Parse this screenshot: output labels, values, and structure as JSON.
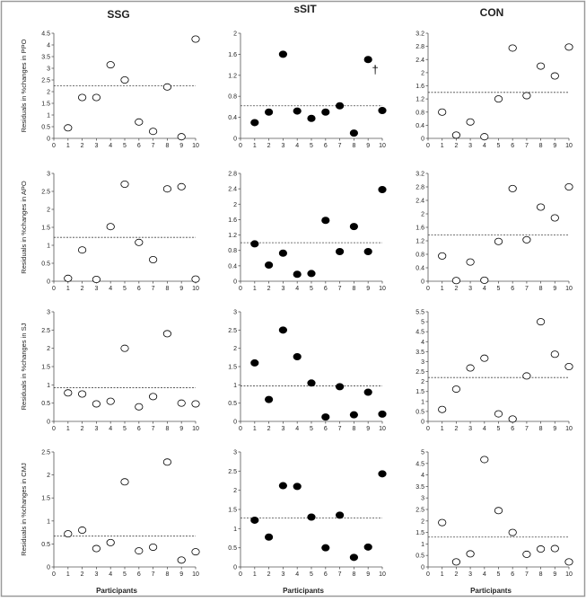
{
  "columns": [
    {
      "key": "ssg",
      "title": "SSG",
      "marker": "open"
    },
    {
      "key": "ssit",
      "title": "sSIT",
      "marker": "filled"
    },
    {
      "key": "con",
      "title": "CON",
      "marker": "open"
    }
  ],
  "rows": [
    {
      "ylabel": "Residuals in %changes in PPO"
    },
    {
      "ylabel": "Residuals in %changes in APO"
    },
    {
      "ylabel": "Residuals in %changes in SJ"
    },
    {
      "ylabel": "Residuals in %changes in CMJ"
    }
  ],
  "xlabel": "Participants",
  "dagger_symbol": "†",
  "chart_data": [
    {
      "type": "scatter",
      "row": 0,
      "col": 0,
      "title": "SSG",
      "ylabel": "Residuals in %changes in PPO",
      "xlabel": "",
      "xlim": [
        0,
        10
      ],
      "ylim": [
        0,
        4.5
      ],
      "yticks": [
        "0",
        "0.5",
        "1",
        "1.5",
        "2",
        "2.5",
        "3",
        "3.5",
        "4",
        "4.5"
      ],
      "marker": "open",
      "x": [
        1,
        2,
        3,
        4,
        5,
        6,
        7,
        8,
        9,
        10
      ],
      "values": [
        0.45,
        1.75,
        1.75,
        3.15,
        2.5,
        0.7,
        0.3,
        2.2,
        0.07,
        4.25
      ],
      "reference_line": 2.25
    },
    {
      "type": "scatter",
      "row": 0,
      "col": 1,
      "title": "sSIT",
      "ylabel": "",
      "xlabel": "",
      "xlim": [
        0,
        10
      ],
      "ylim": [
        0,
        2
      ],
      "yticks": [
        "0",
        "0.4",
        "0.8",
        "1.2",
        "1.6",
        "2"
      ],
      "marker": "filled",
      "x": [
        1,
        2,
        3,
        4,
        5,
        6,
        7,
        8,
        9,
        10
      ],
      "values": [
        0.3,
        0.5,
        1.6,
        0.52,
        0.38,
        0.5,
        0.62,
        0.1,
        1.5,
        0.53
      ],
      "reference_line": 0.62,
      "annotation": {
        "text": "†",
        "x": 9.5,
        "y": 1.2
      }
    },
    {
      "type": "scatter",
      "row": 0,
      "col": 2,
      "title": "CON",
      "ylabel": "",
      "xlabel": "",
      "xlim": [
        0,
        10
      ],
      "ylim": [
        0,
        3.2
      ],
      "yticks": [
        "0",
        "0.4",
        "0.8",
        "1.2",
        "1.6",
        "2",
        "2.4",
        "2.8",
        "3.2"
      ],
      "marker": "open",
      "x": [
        1,
        2,
        3,
        4,
        5,
        6,
        7,
        8,
        9,
        10
      ],
      "values": [
        0.8,
        0.1,
        0.5,
        0.05,
        1.2,
        2.75,
        1.3,
        2.2,
        1.9,
        2.78
      ],
      "reference_line": 1.4
    },
    {
      "type": "scatter",
      "row": 1,
      "col": 0,
      "title": "",
      "ylabel": "Residuals in %changes in APO",
      "xlabel": "",
      "xlim": [
        0,
        10
      ],
      "ylim": [
        0,
        3
      ],
      "yticks": [
        "0",
        "0.5",
        "1",
        "1.5",
        "2",
        "2.5",
        "3"
      ],
      "marker": "open",
      "x": [
        1,
        2,
        3,
        4,
        5,
        6,
        7,
        8,
        9,
        10
      ],
      "values": [
        0.08,
        0.87,
        0.05,
        1.52,
        2.7,
        1.08,
        0.6,
        2.57,
        2.63,
        0.06
      ],
      "reference_line": 1.22
    },
    {
      "type": "scatter",
      "row": 1,
      "col": 1,
      "title": "",
      "ylabel": "",
      "xlabel": "",
      "xlim": [
        0,
        10
      ],
      "ylim": [
        0,
        2.8
      ],
      "yticks": [
        "0",
        "0.4",
        "0.8",
        "1.2",
        "1.6",
        "2",
        "2.4",
        "2.8"
      ],
      "marker": "filled",
      "x": [
        1,
        2,
        3,
        4,
        5,
        6,
        7,
        8,
        9,
        10
      ],
      "values": [
        0.97,
        0.42,
        0.73,
        0.18,
        0.2,
        1.58,
        0.77,
        1.42,
        0.77,
        2.38
      ],
      "reference_line": 1.0
    },
    {
      "type": "scatter",
      "row": 1,
      "col": 2,
      "title": "",
      "ylabel": "",
      "xlabel": "",
      "xlim": [
        0,
        10
      ],
      "ylim": [
        0,
        3.2
      ],
      "yticks": [
        "0",
        "0.4",
        "0.8",
        "1.2",
        "1.6",
        "2",
        "2.4",
        "2.8",
        "3.2"
      ],
      "marker": "open",
      "x": [
        1,
        2,
        3,
        4,
        5,
        6,
        7,
        8,
        9,
        10
      ],
      "values": [
        0.75,
        0.02,
        0.57,
        0.03,
        1.18,
        2.75,
        1.23,
        2.2,
        1.88,
        2.8
      ],
      "reference_line": 1.37
    },
    {
      "type": "scatter",
      "row": 2,
      "col": 0,
      "title": "",
      "ylabel": "Residuals in %changes in SJ",
      "xlabel": "",
      "xlim": [
        0,
        10
      ],
      "ylim": [
        0,
        3
      ],
      "yticks": [
        "0",
        "0.5",
        "1",
        "1.5",
        "2",
        "2.5",
        "3"
      ],
      "marker": "open",
      "x": [
        1,
        2,
        3,
        4,
        5,
        6,
        7,
        8,
        9,
        10
      ],
      "values": [
        0.78,
        0.75,
        0.48,
        0.55,
        2.0,
        0.4,
        0.68,
        2.4,
        0.5,
        0.48
      ],
      "reference_line": 0.92
    },
    {
      "type": "scatter",
      "row": 2,
      "col": 1,
      "title": "",
      "ylabel": "",
      "xlabel": "",
      "xlim": [
        0,
        10
      ],
      "ylim": [
        0,
        3
      ],
      "yticks": [
        "0",
        "0.5",
        "1",
        "1.5",
        "2",
        "2.5",
        "3"
      ],
      "marker": "filled",
      "x": [
        1,
        2,
        3,
        4,
        5,
        6,
        7,
        8,
        9,
        10
      ],
      "values": [
        1.6,
        0.6,
        2.5,
        1.77,
        1.05,
        0.12,
        0.95,
        0.18,
        0.8,
        0.2
      ],
      "reference_line": 0.97
    },
    {
      "type": "scatter",
      "row": 2,
      "col": 2,
      "title": "",
      "ylabel": "",
      "xlabel": "",
      "xlim": [
        0,
        10
      ],
      "ylim": [
        0,
        5.5
      ],
      "yticks": [
        "0",
        "0.5",
        "1",
        "1.5",
        "2",
        "2.5",
        "3",
        "3.5",
        "4",
        "4.5",
        "5",
        "5.5"
      ],
      "marker": "open",
      "x": [
        1,
        2,
        3,
        4,
        5,
        6,
        7,
        8,
        9,
        10
      ],
      "values": [
        0.6,
        1.62,
        2.68,
        3.17,
        0.38,
        0.12,
        2.28,
        5.0,
        3.37,
        2.75
      ],
      "reference_line": 2.2
    },
    {
      "type": "scatter",
      "row": 3,
      "col": 0,
      "title": "",
      "ylabel": "Residuals in %changes in CMJ",
      "xlabel": "Participants",
      "xlim": [
        0,
        10
      ],
      "ylim": [
        0,
        2.5
      ],
      "yticks": [
        "0",
        "0.5",
        "1",
        "1.5",
        "2",
        "2.5"
      ],
      "marker": "open",
      "x": [
        1,
        2,
        3,
        4,
        5,
        6,
        7,
        8,
        9,
        10
      ],
      "values": [
        0.72,
        0.8,
        0.4,
        0.53,
        1.85,
        0.35,
        0.43,
        2.28,
        0.15,
        0.33
      ],
      "reference_line": 0.67
    },
    {
      "type": "scatter",
      "row": 3,
      "col": 1,
      "title": "",
      "ylabel": "",
      "xlabel": "Participants",
      "xlim": [
        0,
        10
      ],
      "ylim": [
        0,
        3
      ],
      "yticks": [
        "0",
        "0.5",
        "1",
        "1.5",
        "2",
        "2.5",
        "3"
      ],
      "marker": "filled",
      "x": [
        1,
        2,
        3,
        4,
        5,
        6,
        7,
        8,
        9,
        10
      ],
      "values": [
        1.22,
        0.78,
        2.12,
        2.1,
        1.3,
        0.5,
        1.35,
        0.25,
        0.52,
        2.43
      ],
      "reference_line": 1.28
    },
    {
      "type": "scatter",
      "row": 3,
      "col": 2,
      "title": "",
      "ylabel": "",
      "xlabel": "Participants",
      "xlim": [
        0,
        10
      ],
      "ylim": [
        0,
        5
      ],
      "yticks": [
        "0",
        "0.5",
        "1",
        "1.5",
        "2",
        "2.5",
        "3",
        "3.5",
        "4",
        "4.5",
        "5"
      ],
      "marker": "open",
      "x": [
        1,
        2,
        3,
        4,
        5,
        6,
        7,
        8,
        9,
        10
      ],
      "values": [
        1.93,
        0.22,
        0.57,
        4.67,
        2.45,
        1.5,
        0.55,
        0.78,
        0.8,
        0.22
      ],
      "reference_line": 1.3
    }
  ]
}
